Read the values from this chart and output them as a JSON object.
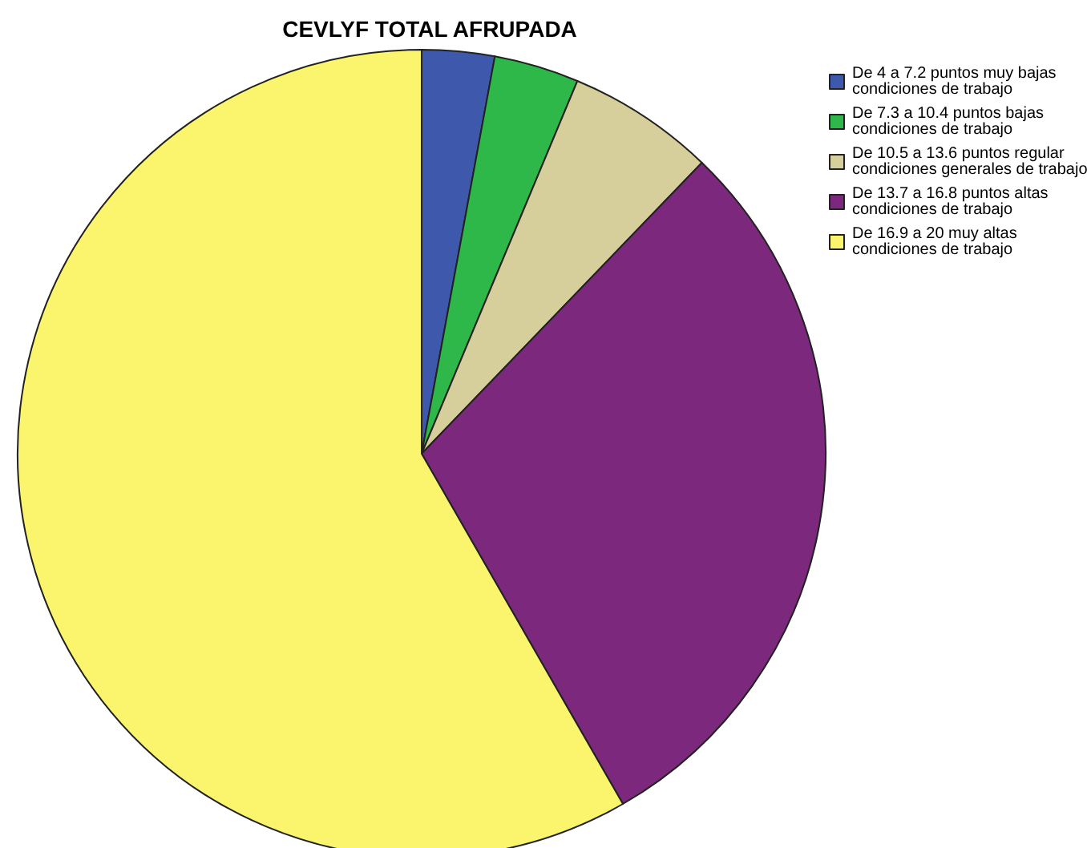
{
  "chart_data": {
    "type": "pie",
    "title": "CEVLYF TOTAL AFRUPADA",
    "categories": [
      "De 4 a 7.2 puntos muy bajas condiciones de trabajo",
      "De 7.3 a 10.4 puntos bajas condiciones de trabajo",
      "De 10.5 a 13.6 puntos regular condiciones generales de trabajo",
      "De 13.7 a 16.8 puntos altas condiciones de trabajo",
      "De 16.9 a 20 muy altas condiciones de trabajo"
    ],
    "values": [
      2.9,
      3.4,
      5.9,
      29.5,
      58.3
    ],
    "colors": [
      "#3e58ac",
      "#2fb84a",
      "#d6cf9b",
      "#7b287d",
      "#fbf56e"
    ],
    "legend": "top right"
  }
}
